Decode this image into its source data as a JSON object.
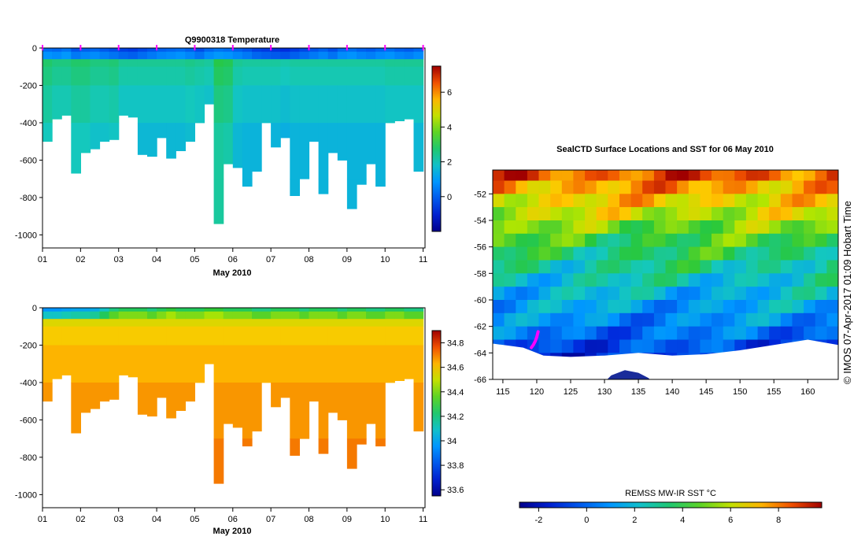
{
  "chart_data": [
    {
      "type": "heatmap",
      "title": "Q9900318  Temperature",
      "xlabel": "May 2010",
      "x_ticks": [
        "01",
        "02",
        "03",
        "04",
        "05",
        "06",
        "07",
        "08",
        "09",
        "10",
        "11"
      ],
      "y_ticks": [
        "0",
        "-200",
        "-400",
        "-600",
        "-800",
        "-1000"
      ],
      "ylim": [
        -1070,
        0
      ],
      "colorbar_ticks": [
        "0",
        "2",
        "4",
        "6"
      ],
      "colorbar_range": [
        -2,
        7.5
      ],
      "profile_days": [
        1.0,
        1.25,
        1.5,
        1.75,
        2.0,
        2.25,
        2.5,
        2.75,
        3.0,
        3.25,
        3.5,
        3.75,
        4.0,
        4.25,
        4.5,
        4.75,
        5.0,
        5.25,
        5.5,
        5.75,
        6.0,
        6.25,
        6.5,
        6.75,
        7.0,
        7.25,
        7.5,
        7.75,
        8.0,
        8.25,
        8.5,
        8.75,
        9.0,
        9.25,
        9.5,
        9.75,
        10.0,
        10.25,
        10.5,
        10.75
      ],
      "profile_max_depth": [
        500,
        380,
        360,
        670,
        560,
        540,
        500,
        490,
        360,
        370,
        570,
        580,
        480,
        590,
        550,
        500,
        400,
        300,
        940,
        620,
        640,
        740,
        660,
        400,
        530,
        480,
        790,
        700,
        500,
        780,
        560,
        600,
        860,
        730,
        620,
        740,
        400,
        390,
        380,
        660
      ],
      "surface_values": [
        0.2,
        0.1,
        0.3,
        -0.2,
        0.0,
        0.1,
        -0.1,
        -0.3,
        -0.5,
        -0.6,
        -0.4,
        -0.2,
        0.0,
        0.1,
        0.2,
        0.0,
        -0.3,
        0.1,
        0.3,
        0.2,
        0.0,
        -0.2,
        -0.5,
        -0.6,
        -0.7,
        -0.8,
        -0.6,
        -0.4,
        -0.2,
        0.0,
        -0.3,
        0.1,
        0.2,
        0.0,
        -0.1,
        0.1,
        0.2,
        0.0,
        -0.1,
        0.1
      ],
      "deep_values": [
        2.2,
        2.0,
        2.0,
        2.2,
        2.2,
        2.0,
        2.0,
        2.1,
        1.8,
        1.8,
        1.8,
        1.8,
        1.8,
        1.8,
        1.8,
        1.9,
        1.8,
        1.7,
        2.5,
        2.4,
        1.8,
        1.7,
        1.7,
        1.7,
        1.7,
        1.6,
        1.7,
        1.7,
        1.7,
        1.7,
        1.7,
        1.7,
        1.7,
        1.7,
        1.7,
        1.7,
        1.8,
        1.8,
        1.8,
        1.8
      ]
    },
    {
      "type": "heatmap",
      "title": "",
      "xlabel": "May 2010",
      "x_ticks": [
        "01",
        "02",
        "03",
        "04",
        "05",
        "06",
        "07",
        "08",
        "09",
        "10",
        "11"
      ],
      "y_ticks": [
        "0",
        "-200",
        "-400",
        "-600",
        "-800",
        "-1000"
      ],
      "ylim": [
        -1070,
        0
      ],
      "colorbar_ticks": [
        "33.6",
        "33.8",
        "34",
        "34.2",
        "34.4",
        "34.6",
        "34.8"
      ],
      "colorbar_range": [
        33.55,
        34.9
      ],
      "surface_values": [
        33.95,
        33.95,
        33.98,
        34.0,
        34.0,
        34.02,
        34.1,
        34.2,
        34.25,
        34.25,
        34.25,
        34.2,
        34.25,
        34.3,
        34.25,
        34.25,
        34.25,
        34.3,
        34.3,
        34.25,
        34.25,
        34.25,
        34.2,
        34.2,
        34.25,
        34.25,
        34.25,
        34.2,
        34.25,
        34.25,
        34.25,
        34.2,
        34.25,
        34.25,
        34.2,
        34.2,
        34.25,
        34.25,
        34.2,
        34.2
      ],
      "deep_values": [
        34.7,
        34.7,
        34.7,
        34.7,
        34.7,
        34.7,
        34.7,
        34.7,
        34.7,
        34.7,
        34.7,
        34.7,
        34.7,
        34.72,
        34.72,
        34.72,
        34.72,
        34.72,
        34.72,
        34.72,
        34.72,
        34.72,
        34.72,
        34.72,
        34.72,
        34.72,
        34.72,
        34.72,
        34.72,
        34.72,
        34.72,
        34.72,
        34.72,
        34.72,
        34.72,
        34.72,
        34.72,
        34.72,
        34.72,
        34.72
      ]
    },
    {
      "type": "heatmap",
      "title": "SealCTD Surface Locations and SST for 06 May 2010",
      "x_ticks": [
        "115",
        "120",
        "125",
        "130",
        "135",
        "140",
        "145",
        "150",
        "155",
        "160"
      ],
      "y_ticks": [
        "-52",
        "-54",
        "-56",
        "-58",
        "-60",
        "-62",
        "-64",
        "-66"
      ],
      "xlim": [
        113.5,
        164.5
      ],
      "ylim": [
        -66,
        -50.2
      ],
      "colorbar_label": "REMSS MW-IR SST °C",
      "colorbar_ticks": [
        "-2",
        "0",
        "2",
        "4",
        "6",
        "8"
      ],
      "colorbar_range": [
        -2.8,
        9.8
      ],
      "lat_bands": [
        -51,
        -52,
        -53,
        -54,
        -55,
        -56,
        -57,
        -58,
        -59,
        -60,
        -61,
        -62,
        -63,
        -64,
        -65
      ],
      "band_sst": [
        8.5,
        7.6,
        6.8,
        6.0,
        5.0,
        4.2,
        3.6,
        3.0,
        2.4,
        1.8,
        1.3,
        0.8,
        0.2,
        -0.5,
        -1.2
      ],
      "track_lon": [
        120.2,
        120.0,
        119.8,
        119.5,
        119.2
      ],
      "track_lat": [
        -62.4,
        -62.8,
        -63.1,
        -63.4,
        -63.6
      ]
    }
  ],
  "credit": "© IMOS 07-Apr-2017 01:09 Hobart Time",
  "colors": {
    "track": "#ff00ff"
  }
}
